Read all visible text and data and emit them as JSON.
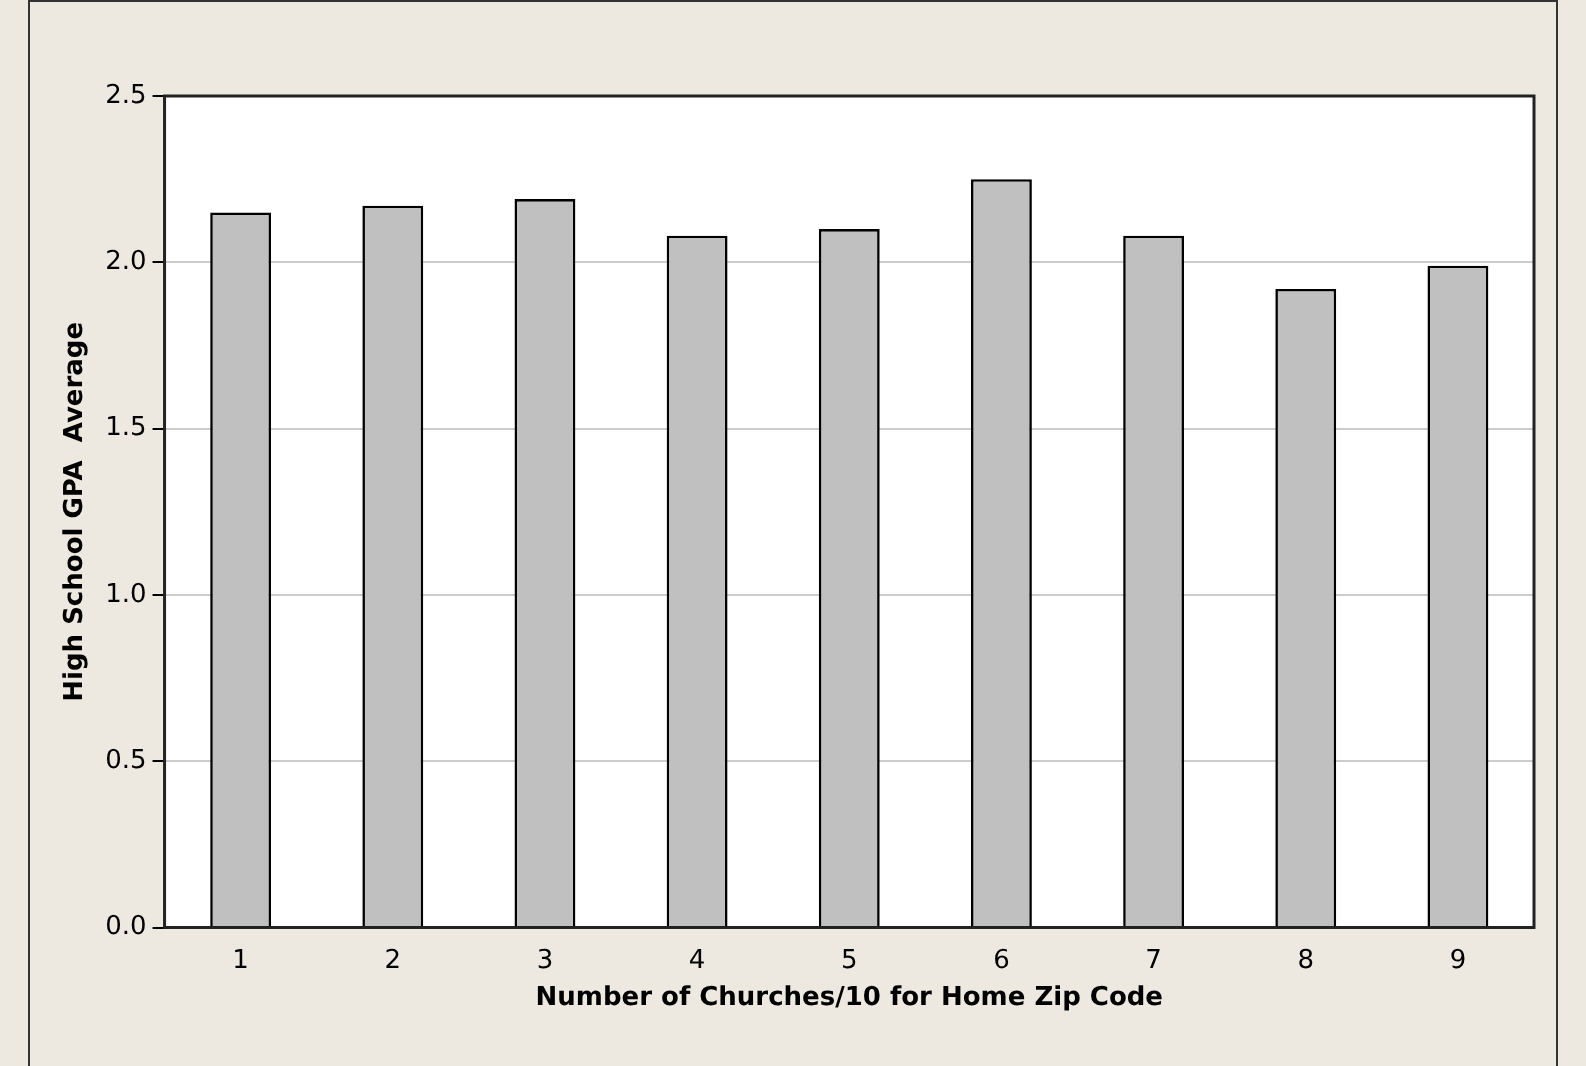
{
  "chart_data": {
    "type": "bar",
    "xlabel": "Number of Churches/10 for Home Zip Code",
    "ylabel": "High School GPA  Average",
    "categories": [
      "1",
      "2",
      "3",
      "4",
      "5",
      "6",
      "7",
      "8",
      "9"
    ],
    "values": [
      2.15,
      2.17,
      2.19,
      2.08,
      2.1,
      2.25,
      2.08,
      1.92,
      1.99
    ],
    "color": "#c0c0c0",
    "ylim": [
      0,
      2.5
    ],
    "yticks": [
      {
        "value": 0,
        "label": "0.0"
      },
      {
        "value": 0.5,
        "label": "0.5"
      },
      {
        "value": 1,
        "label": "1.0"
      },
      {
        "value": 1.5,
        "label": "1.5"
      },
      {
        "value": 2,
        "label": "2.0"
      },
      {
        "value": 2.5,
        "label": "2.5"
      }
    ],
    "grid": "y",
    "legend": false
  }
}
